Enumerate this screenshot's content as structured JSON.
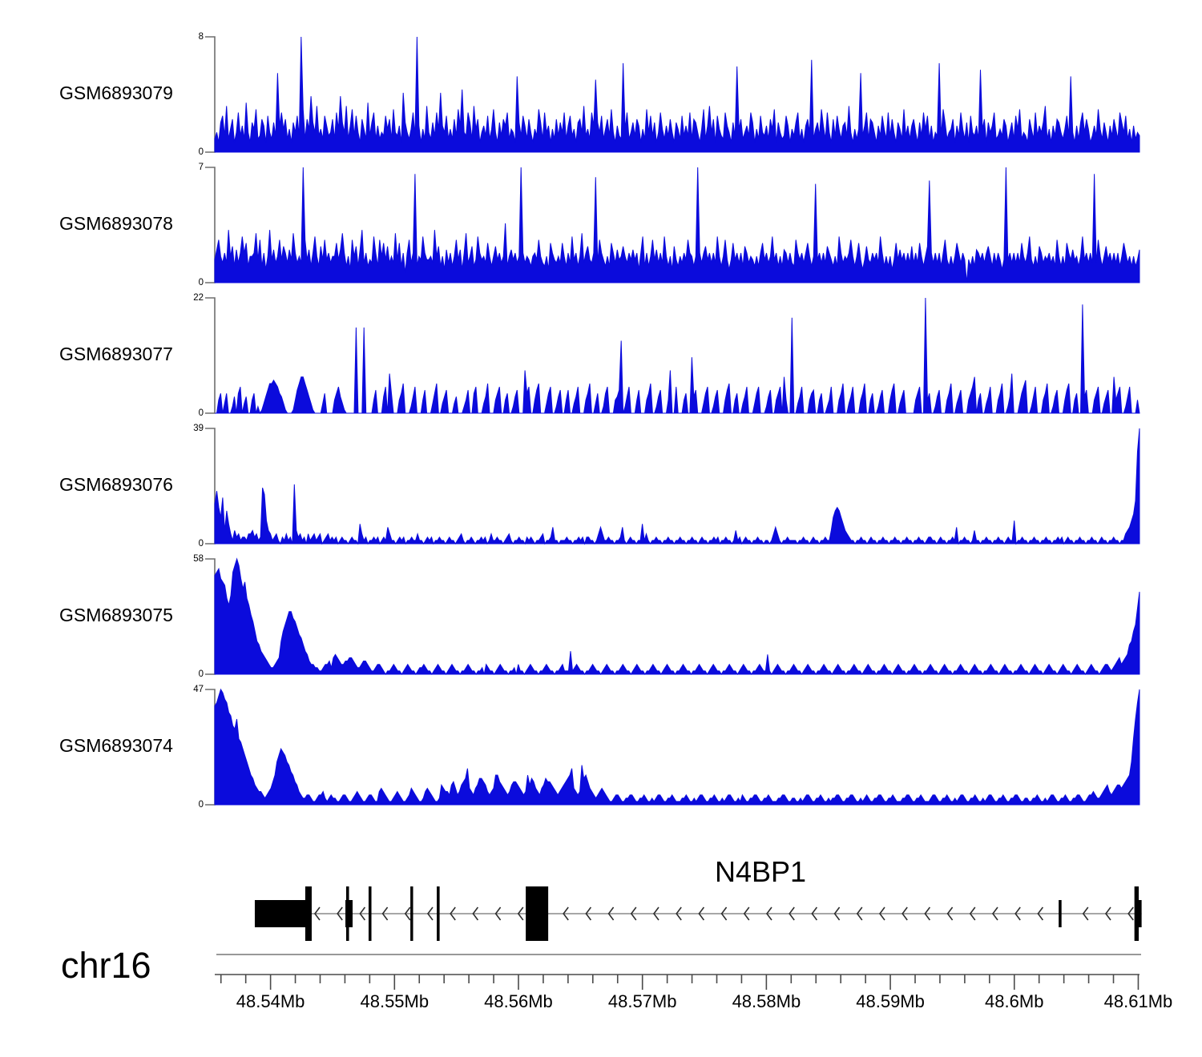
{
  "chart_data": {
    "type": "area",
    "title": "",
    "x_units": "Mb",
    "x_range": [
      48.5355,
      48.6101
    ],
    "zero_label": "0",
    "signal_color": "#0b0bdc",
    "tracks": [
      {
        "label": "GSM6893079",
        "ymax": 8,
        "sig": [
          "4639b5e47a36c584f6397d45a83b6495o8c7a47396b5zd4a7h96e574b85",
          "6a4c7h96e48d5b63a74f59c48465b7a4d6583i9647c5z8374e6495c7i86",
          "b474a5d8j65c94e7a3685b47d6395a8c4763n95b84a6375d94c68374a59",
          "6c48b5739a6e574c8m96b47a5d63854r7c4695a8374d6b5936c7485a639",
          "74b585c4a9637d48e6a3b754c86395q7a4685c9374b6584a7d39645b837",
          "59c4738a6s4795d84c63a5b74895e63747o58c4a96385b74c5a63974d58",
          "48a6395c7b48365r5d9467a385c7493b6584p7a3968c4575a83694b7d46",
          "53a74c5869e47385a9647b5n63849c6a73585d7496385a74c96b4738465"
        ]
      },
      {
        "label": "GSM6893078",
        "ymax": 7,
        "sig": [
          "7ad8696g8b5a69e9c5889f7d5948g7a68d7b96a7f9686zd7a59e85b7d79",
          "688c7af9584d8b5ag69576e95d8c7b686f7c5939d69x587e97786g8b584",
          "a6958d7a49f68b57e9786c858b7968i58a7968z96875897d86584c97686",
          "c8596e7958f69b769w6d97585c96a78b8697a7949e5958d7a696e8584b7",
          "58697d9858z969b79696e858d747c79695b96875859c7968e79585a9696",
          "5d97969c858u79696b97585e96879d858c747b769796e9585847c7a7969",
          "6b696c858bv9696959d75858c969707585a97969b85969747z7969696c8",
          "69e7585b96879685d8585c97a7858e79696x6d858b79696958c9685857a"
        ]
      },
      {
        "label": "GSM6893077",
        "ymax": 22,
        "sig": [
          "004603600250680350046020135799a9865310001479bb9753100003600",
          "0046853100000q000q000047000580c6000469000258000470003690035",
          "7000350002470068000359000468004600257000d680047900036800257",
          "004700358000469003600268000457m025800047000469002570004d00",
          "80004600h5700036800257000479004600358000368000257004680b400",
          "t00358000467004600248000469003580004690046002570004790035700",
          "00046800z460025700046900357000468b046003580004690025c000368",
          "a0025800046900257000479004600x570004680035700b4680025800040"
        ]
      },
      {
        "label": "GSM6893076",
        "ymax": 39,
        "sig": [
          "cgb8e4a63142312213342312hf74312310213120i423120312312301231",
          "2120121101211063120112120121531101212011211311012120112110",
          "1211012310112101121201311211012310112110212101123011251101",
          "1121101121202211013531121101125101211011613101121101121101",
          "1211011211012110112120112110141201211011211011013531011211",
          "110112110121101121148aba86432110112110121101121101121101121",
          "1011211012211012110112150112110141101121101121101211701121",
          "1011211011211011212012110112110112110121101121101134579dsz"
        ]
      },
      {
        "label": "GSM6893075",
        "ymax": 58,
        "sig": [
          "uvwtsrnlovxzxtqsnligda97654322345adfhjjhgecb976433221123342",
          "5654334455432234432112332101123211012321101223211012321101",
          "2321101123211011203211012321101120311012321101123211011231",
          "1171232110112321101232110112321101232110112321101232110112",
          "3211011232110123211011232110123211011232116101232110112321",
          "1012321101123211012321101123211012321101123211012321101123",
          "2110112321101232110112321101232110112321101232110112321101",
          "2321101232110123211012321101232110123321234534569adfkp"
        ]
      },
      {
        "label": "GSM6893074",
        "ymax": 47,
        "sig": [
          "uvxzywvsronqkjhfdb9865443234579dfhgfdca9764322332112334212",
          "3221123321123432112332114543211234321123543211245432112654",
          "4367534678b54356887643459976543467765434968754356877654345",
          "6789b5434c89754323454321123321122332112232112123321122321",
          "1122321121233211223211212332112132112233211223211122332112",
          "2112123321122321121223321122332112123211223321122321112233",
          "2112232111233211223211212332112232112123321122321122332112",
          "2112232112123321122321122332112334322345643456656789dkqvz"
        ]
      }
    ],
    "gene_track": {
      "gene_label": "N4BP1",
      "chromosome": "chr16",
      "strand": "-",
      "span": [
        48.53873,
        48.61027
      ],
      "exons": [
        {
          "start": 48.53873,
          "end": 48.54293,
          "h": "half"
        },
        {
          "start": 48.5428,
          "end": 48.54332,
          "h": "full"
        },
        {
          "start": 48.54604,
          "end": 48.54662,
          "h": "half"
        },
        {
          "start": 48.5461,
          "end": 48.54633,
          "h": "full"
        },
        {
          "start": 48.54791,
          "end": 48.54814,
          "h": "full"
        },
        {
          "start": 48.55128,
          "end": 48.5515,
          "h": "full"
        },
        {
          "start": 48.55341,
          "end": 48.55364,
          "h": "full"
        },
        {
          "start": 48.56059,
          "end": 48.5624,
          "h": "full"
        },
        {
          "start": 48.60358,
          "end": 48.60381,
          "h": "half"
        },
        {
          "start": 48.60969,
          "end": 48.61004,
          "h": "full"
        },
        {
          "start": 48.60985,
          "end": 48.61027,
          "h": "half"
        }
      ]
    },
    "axis": {
      "tick_start": 48.536,
      "tick_end": 48.61,
      "minor_step": 0.002,
      "major_ticks": [
        48.54,
        48.55,
        48.56,
        48.57,
        48.58,
        48.59,
        48.6,
        48.61
      ],
      "major_labels": [
        "48.54Mb",
        "48.55Mb",
        "48.56Mb",
        "48.57Mb",
        "48.58Mb",
        "48.59Mb",
        "48.6Mb",
        "48.61Mb"
      ]
    }
  }
}
